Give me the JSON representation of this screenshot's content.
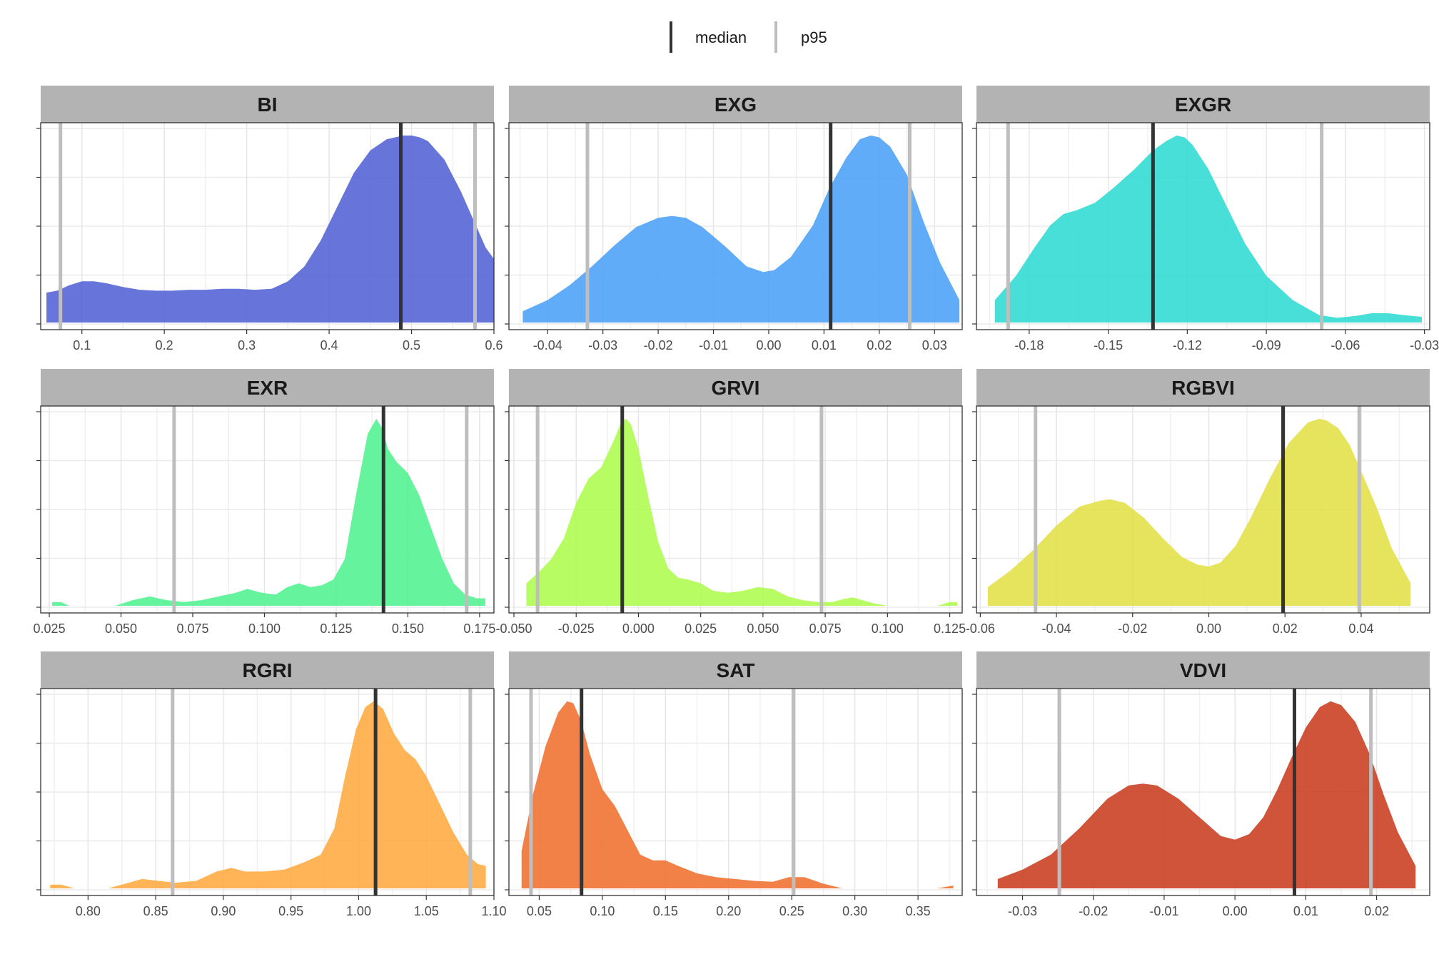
{
  "legend": [
    {
      "label": "median",
      "color": "#333333"
    },
    {
      "label": "p95",
      "color": "#bebebe"
    }
  ],
  "chart_data": [
    {
      "type": "area",
      "title": "BI",
      "fill": "#5262d6",
      "xlim": [
        0.05,
        0.6
      ],
      "x_ticks": [
        "0.1",
        "0.2",
        "0.3",
        "0.4",
        "0.5",
        "0.6"
      ],
      "median": 0.487,
      "p95": [
        0.074,
        0.577
      ],
      "x": [
        0.057,
        0.07,
        0.085,
        0.1,
        0.115,
        0.13,
        0.15,
        0.17,
        0.19,
        0.21,
        0.23,
        0.25,
        0.27,
        0.29,
        0.31,
        0.33,
        0.35,
        0.37,
        0.39,
        0.41,
        0.43,
        0.45,
        0.47,
        0.49,
        0.5,
        0.51,
        0.52,
        0.54,
        0.56,
        0.575,
        0.59,
        0.6
      ],
      "density": [
        0.16,
        0.17,
        0.2,
        0.22,
        0.22,
        0.21,
        0.19,
        0.175,
        0.17,
        0.17,
        0.175,
        0.175,
        0.18,
        0.18,
        0.175,
        0.18,
        0.22,
        0.3,
        0.44,
        0.62,
        0.8,
        0.92,
        0.98,
        1.0,
        1.0,
        0.99,
        0.97,
        0.87,
        0.7,
        0.55,
        0.4,
        0.34
      ],
      "ylim": [
        0,
        1.03
      ]
    },
    {
      "type": "area",
      "title": "EXG",
      "fill": "#4ba1f7",
      "xlim": [
        -0.047,
        0.035
      ],
      "x_ticks": [
        "-0.04",
        "-0.03",
        "-0.02",
        "-0.01",
        "0.00",
        "0.01",
        "0.02",
        "0.03"
      ],
      "median": 0.0112,
      "p95": [
        -0.0328,
        0.0255
      ],
      "x": [
        -0.0445,
        -0.04,
        -0.036,
        -0.032,
        -0.028,
        -0.024,
        -0.02,
        -0.0175,
        -0.015,
        -0.012,
        -0.008,
        -0.004,
        -0.001,
        0.001,
        0.004,
        0.008,
        0.011,
        0.014,
        0.0165,
        0.0185,
        0.02,
        0.022,
        0.025,
        0.028,
        0.031,
        0.0345
      ],
      "density": [
        0.06,
        0.12,
        0.2,
        0.3,
        0.41,
        0.51,
        0.56,
        0.57,
        0.56,
        0.51,
        0.41,
        0.3,
        0.27,
        0.28,
        0.35,
        0.52,
        0.72,
        0.88,
        0.98,
        1.0,
        0.99,
        0.94,
        0.79,
        0.54,
        0.32,
        0.12
      ],
      "ylim": [
        0,
        1.03
      ]
    },
    {
      "type": "area",
      "title": "EXGR",
      "fill": "#2edbd1",
      "xlim": [
        -0.2,
        -0.028
      ],
      "x_ticks": [
        "-0.18",
        "-0.15",
        "-0.12",
        "-0.09",
        "-0.06",
        "-0.03"
      ],
      "median": -0.133,
      "p95": [
        -0.188,
        -0.069
      ],
      "x": [
        -0.193,
        -0.185,
        -0.178,
        -0.172,
        -0.167,
        -0.162,
        -0.155,
        -0.148,
        -0.14,
        -0.133,
        -0.128,
        -0.124,
        -0.121,
        -0.118,
        -0.112,
        -0.105,
        -0.098,
        -0.09,
        -0.08,
        -0.07,
        -0.063,
        -0.056,
        -0.05,
        -0.044,
        -0.038,
        -0.031
      ],
      "density": [
        0.12,
        0.25,
        0.4,
        0.52,
        0.58,
        0.6,
        0.64,
        0.72,
        0.82,
        0.92,
        0.97,
        1.0,
        0.99,
        0.95,
        0.82,
        0.62,
        0.42,
        0.25,
        0.12,
        0.04,
        0.025,
        0.035,
        0.05,
        0.05,
        0.04,
        0.03
      ],
      "ylim": [
        0,
        1.03
      ]
    },
    {
      "type": "area",
      "title": "EXR",
      "fill": "#50f290",
      "xlim": [
        0.022,
        0.18
      ],
      "x_ticks": [
        "0.025",
        "0.050",
        "0.075",
        "0.100",
        "0.125",
        "0.150",
        "0.175"
      ],
      "median": 0.1415,
      "p95": [
        0.0685,
        0.1705
      ],
      "x": [
        0.026,
        0.029,
        0.032,
        0.04,
        0.048,
        0.054,
        0.06,
        0.066,
        0.072,
        0.078,
        0.084,
        0.09,
        0.094,
        0.099,
        0.104,
        0.108,
        0.112,
        0.116,
        0.12,
        0.124,
        0.128,
        0.132,
        0.136,
        0.139,
        0.141,
        0.143,
        0.146,
        0.15,
        0.154,
        0.158,
        0.162,
        0.166,
        0.17,
        0.174,
        0.177
      ],
      "density": [
        0.02,
        0.02,
        0.0,
        0.0,
        0.0,
        0.03,
        0.05,
        0.03,
        0.02,
        0.03,
        0.05,
        0.07,
        0.09,
        0.07,
        0.06,
        0.1,
        0.12,
        0.1,
        0.11,
        0.14,
        0.25,
        0.6,
        0.92,
        1.0,
        0.95,
        0.84,
        0.77,
        0.71,
        0.59,
        0.42,
        0.25,
        0.12,
        0.06,
        0.04,
        0.04
      ],
      "ylim": [
        0,
        1.03
      ]
    },
    {
      "type": "area",
      "title": "GRVI",
      "fill": "#aefc4e",
      "xlim": [
        -0.052,
        0.13
      ],
      "x_ticks": [
        "-0.050",
        "-0.025",
        "0.000",
        "0.025",
        "0.050",
        "0.075",
        "0.100",
        "0.125"
      ],
      "median": -0.0065,
      "p95": [
        -0.0405,
        0.0735
      ],
      "x": [
        -0.045,
        -0.04,
        -0.035,
        -0.03,
        -0.025,
        -0.02,
        -0.015,
        -0.01,
        -0.007,
        -0.005,
        -0.003,
        0.0,
        0.004,
        0.008,
        0.012,
        0.016,
        0.02,
        0.025,
        0.03,
        0.036,
        0.042,
        0.048,
        0.054,
        0.06,
        0.066,
        0.072,
        0.078,
        0.082,
        0.086,
        0.09,
        0.094,
        0.1,
        0.11,
        0.12,
        0.125,
        0.128
      ],
      "density": [
        0.12,
        0.18,
        0.25,
        0.36,
        0.55,
        0.68,
        0.74,
        0.88,
        0.98,
        1.0,
        0.97,
        0.84,
        0.58,
        0.34,
        0.2,
        0.15,
        0.14,
        0.12,
        0.08,
        0.07,
        0.08,
        0.1,
        0.09,
        0.05,
        0.03,
        0.02,
        0.02,
        0.035,
        0.045,
        0.03,
        0.015,
        0.0,
        0.0,
        0.0,
        0.02,
        0.02
      ],
      "ylim": [
        0,
        1.03
      ]
    },
    {
      "type": "area",
      "title": "RGBVI",
      "fill": "#e2e046",
      "xlim": [
        -0.061,
        0.058
      ],
      "x_ticks": [
        "-0.06",
        "-0.04",
        "-0.02",
        "0.00",
        "0.02",
        "0.04"
      ],
      "median": 0.0195,
      "p95": [
        -0.0455,
        0.0395
      ],
      "x": [
        -0.058,
        -0.052,
        -0.046,
        -0.04,
        -0.034,
        -0.029,
        -0.026,
        -0.022,
        -0.017,
        -0.012,
        -0.007,
        -0.003,
        0.0,
        0.003,
        0.007,
        0.011,
        0.016,
        0.021,
        0.026,
        0.029,
        0.031,
        0.034,
        0.037,
        0.04,
        0.044,
        0.048,
        0.053
      ],
      "density": [
        0.1,
        0.19,
        0.3,
        0.43,
        0.53,
        0.56,
        0.57,
        0.55,
        0.47,
        0.36,
        0.26,
        0.22,
        0.21,
        0.23,
        0.32,
        0.47,
        0.68,
        0.87,
        0.98,
        1.0,
        0.99,
        0.95,
        0.86,
        0.72,
        0.53,
        0.31,
        0.12
      ],
      "ylim": [
        0,
        1.03
      ]
    },
    {
      "type": "area",
      "title": "RGRI",
      "fill": "#ffab40",
      "xlim": [
        0.765,
        1.1
      ],
      "x_ticks": [
        "0.80",
        "0.85",
        "0.90",
        "0.95",
        "1.00",
        "1.05",
        "1.10"
      ],
      "median": 1.0125,
      "p95": [
        0.8625,
        1.0825
      ],
      "x": [
        0.772,
        0.78,
        0.79,
        0.805,
        0.815,
        0.825,
        0.84,
        0.852,
        0.865,
        0.88,
        0.895,
        0.906,
        0.916,
        0.93,
        0.945,
        0.96,
        0.972,
        0.982,
        0.99,
        0.998,
        1.005,
        1.011,
        1.018,
        1.026,
        1.034,
        1.042,
        1.05,
        1.06,
        1.07,
        1.08,
        1.088,
        1.094
      ],
      "density": [
        0.02,
        0.02,
        0.0,
        0.0,
        0.0,
        0.02,
        0.05,
        0.04,
        0.03,
        0.04,
        0.09,
        0.11,
        0.09,
        0.09,
        0.1,
        0.14,
        0.18,
        0.32,
        0.6,
        0.85,
        0.97,
        1.0,
        0.96,
        0.83,
        0.74,
        0.69,
        0.6,
        0.45,
        0.3,
        0.18,
        0.13,
        0.12
      ],
      "ylim": [
        0,
        1.03
      ]
    },
    {
      "type": "area",
      "title": "SAT",
      "fill": "#f0702f",
      "xlim": [
        0.026,
        0.385
      ],
      "x_ticks": [
        "0.05",
        "0.10",
        "0.15",
        "0.20",
        "0.25",
        "0.30",
        "0.35"
      ],
      "median": 0.0835,
      "p95": [
        0.0435,
        0.2515
      ],
      "x": [
        0.036,
        0.045,
        0.055,
        0.065,
        0.072,
        0.077,
        0.083,
        0.09,
        0.1,
        0.11,
        0.12,
        0.13,
        0.14,
        0.15,
        0.16,
        0.175,
        0.19,
        0.205,
        0.22,
        0.235,
        0.248,
        0.26,
        0.275,
        0.29,
        0.3,
        0.31,
        0.33,
        0.35,
        0.365,
        0.378
      ],
      "density": [
        0.2,
        0.5,
        0.76,
        0.94,
        1.0,
        0.99,
        0.9,
        0.72,
        0.53,
        0.44,
        0.31,
        0.18,
        0.15,
        0.15,
        0.12,
        0.08,
        0.06,
        0.05,
        0.04,
        0.035,
        0.06,
        0.06,
        0.025,
        0.0,
        0.0,
        0.0,
        0.0,
        0.0,
        0.0,
        0.015
      ],
      "ylim": [
        0,
        1.03
      ]
    },
    {
      "type": "area",
      "title": "VDVI",
      "fill": "#c93c1e",
      "xlim": [
        -0.0365,
        0.0275
      ],
      "x_ticks": [
        "-0.03",
        "-0.02",
        "-0.01",
        "0.00",
        "0.01",
        "0.02"
      ],
      "median": 0.0084,
      "p95": [
        -0.0248,
        0.0192
      ],
      "x": [
        -0.0335,
        -0.03,
        -0.026,
        -0.022,
        -0.018,
        -0.015,
        -0.013,
        -0.011,
        -0.008,
        -0.005,
        -0.002,
        0.0,
        0.002,
        0.004,
        0.006,
        0.008,
        0.01,
        0.012,
        0.0135,
        0.015,
        0.017,
        0.019,
        0.021,
        0.023,
        0.0255
      ],
      "density": [
        0.05,
        0.1,
        0.18,
        0.32,
        0.48,
        0.55,
        0.56,
        0.55,
        0.48,
        0.38,
        0.28,
        0.26,
        0.29,
        0.38,
        0.53,
        0.7,
        0.86,
        0.97,
        1.0,
        0.98,
        0.89,
        0.72,
        0.5,
        0.3,
        0.12
      ],
      "ylim": [
        0,
        1.03
      ]
    }
  ]
}
